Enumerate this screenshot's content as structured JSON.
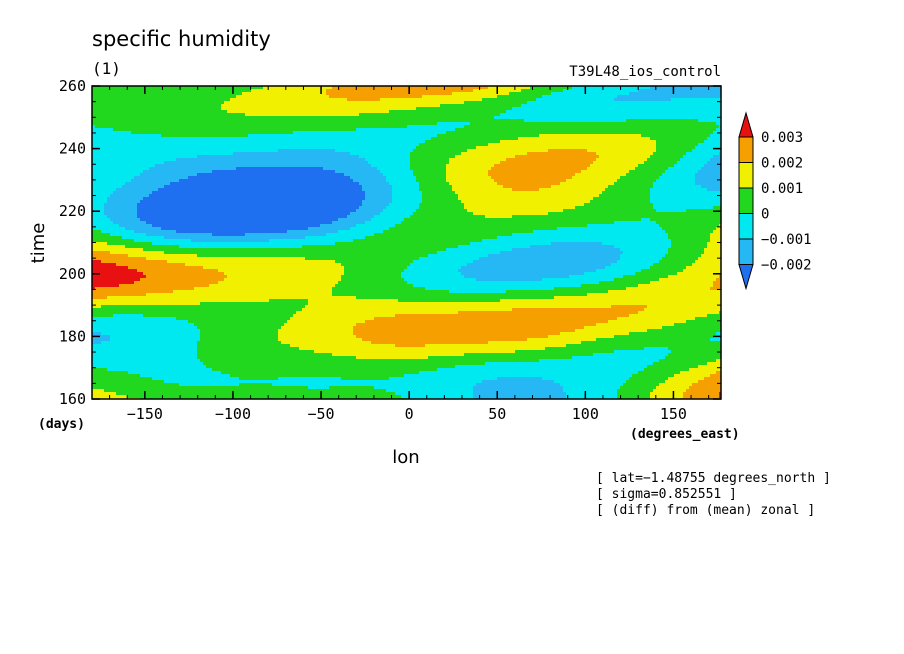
{
  "chart_data": {
    "type": "heatmap",
    "title": "specific humidity",
    "panel_label": "(1)",
    "experiment": "T39L48_ios_control",
    "xlabel": "lon",
    "xunit": "(degrees_east)",
    "ylabel": "time",
    "yunit": "(days)",
    "xlim": [
      -180,
      177
    ],
    "ylim": [
      160,
      260
    ],
    "x_ticks": [
      -150,
      -100,
      -50,
      0,
      50,
      100,
      150
    ],
    "x_tick_labels": [
      "−150",
      "−100",
      "−50",
      "0",
      "50",
      "100",
      "150"
    ],
    "y_ticks": [
      160,
      180,
      200,
      220,
      240,
      260
    ],
    "y_tick_labels": [
      "160",
      "180",
      "200",
      "220",
      "240",
      "260"
    ],
    "colorbar": {
      "levels": [
        -0.002,
        -0.001,
        0,
        0.001,
        0.002,
        0.003
      ],
      "labels": [
        "−0.002",
        "−0.001",
        "0",
        "0.001",
        "0.002",
        "0.003"
      ],
      "colors": [
        "#1f70f0",
        "#26b8f5",
        "#00e8f0",
        "#22d81e",
        "#f0f000",
        "#f5a000",
        "#e81010"
      ]
    },
    "annotations": [
      "[ lat=−1.48755 degrees_north ]",
      "[ sigma=0.852551 ]",
      "[ (diff) from (mean) zonal ]"
    ],
    "grid": false
  }
}
